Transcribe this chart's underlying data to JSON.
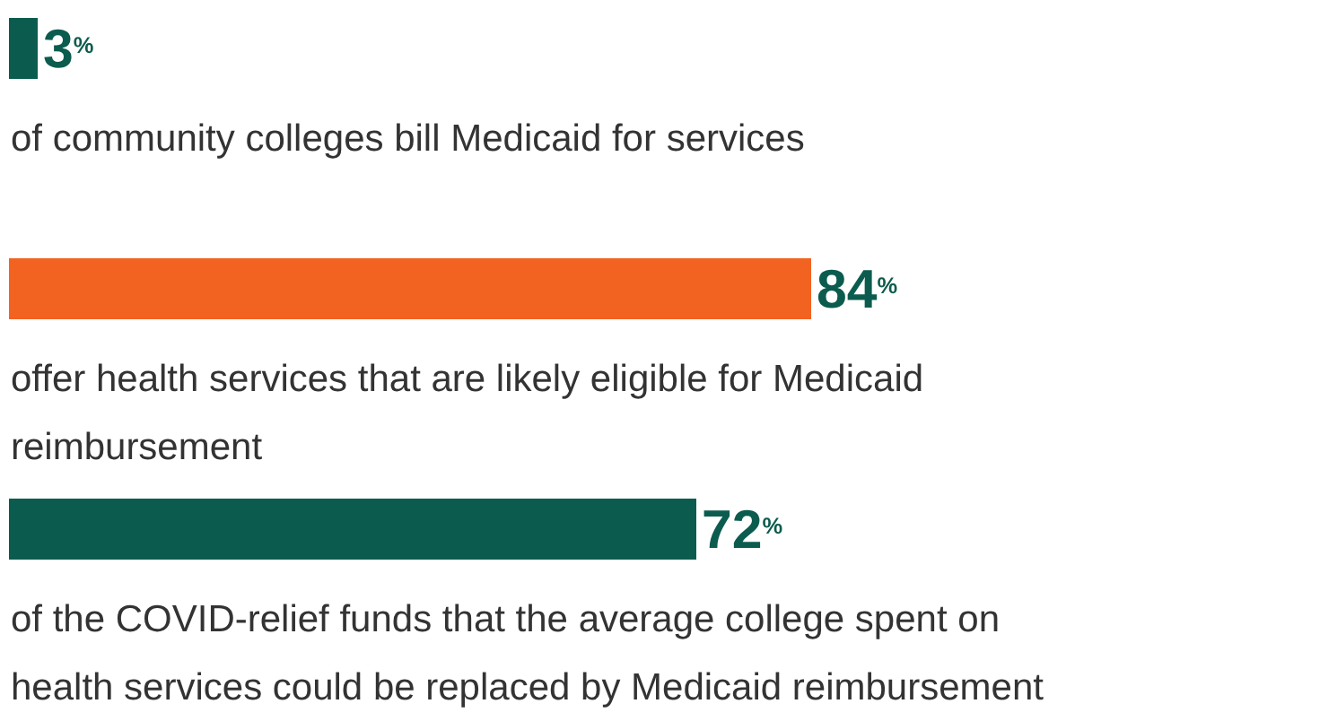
{
  "chart_data": {
    "type": "bar",
    "orientation": "horizontal",
    "categories": [
      "of community colleges bill Medicaid for services",
      "offer health services that are likely eligible for Medicaid reimbursement",
      "of the COVID-relief funds that the average college spent on health services could be replaced by Medicaid reimbursement"
    ],
    "values": [
      3,
      84,
      72
    ],
    "value_labels": [
      "3$^{%}$",
      "84$^{%}$",
      "72$^{%}$"
    ],
    "colors": [
      "#0b5c4e",
      "#f26322",
      "#0b5c4e"
    ],
    "legend": false
  }
}
